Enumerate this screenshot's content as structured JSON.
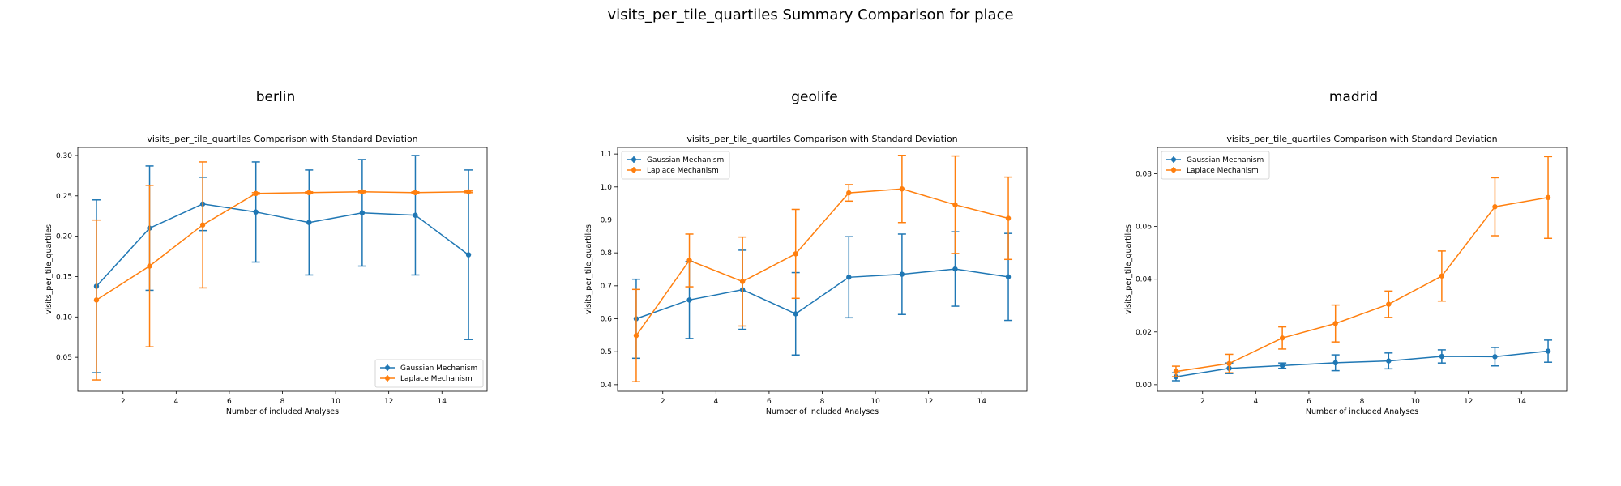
{
  "figure": {
    "suptitle": "visits_per_tile_quartiles Summary Comparison for place"
  },
  "chart_data": [
    {
      "type": "line",
      "panel_title": "berlin",
      "title": "visits_per_tile_quartiles Comparison with Standard Deviation",
      "xlabel": "Number of included Analyses",
      "ylabel": "visits_per_tile_quartiles",
      "xlim": [
        0.3,
        15.7
      ],
      "ylim": [
        0.008,
        0.31
      ],
      "xticks": [
        2,
        4,
        6,
        8,
        10,
        12,
        14
      ],
      "yticks": [
        0.05,
        0.1,
        0.15,
        0.2,
        0.25,
        0.3
      ],
      "yticklabels": [
        "0.05",
        "0.10",
        "0.15",
        "0.20",
        "0.25",
        "0.30"
      ],
      "legend": "lower-right",
      "x": [
        1,
        3,
        5,
        7,
        9,
        11,
        13,
        15
      ],
      "series": [
        {
          "name": "Gaussian Mechanism",
          "color": "#1f77b4",
          "values": [
            0.138,
            0.21,
            0.24,
            0.23,
            0.217,
            0.229,
            0.226,
            0.177
          ],
          "std": [
            0.107,
            0.077,
            0.033,
            0.062,
            0.065,
            0.066,
            0.074,
            0.105
          ]
        },
        {
          "name": "Laplace Mechanism",
          "color": "#ff7f0e",
          "values": [
            0.121,
            0.163,
            0.214,
            0.253,
            0.254,
            0.255,
            0.254,
            0.255
          ],
          "std": [
            0.099,
            0.1,
            0.078,
            0.001,
            0.001,
            0.001,
            0.001,
            0.001
          ]
        }
      ]
    },
    {
      "type": "line",
      "panel_title": "geolife",
      "title": "visits_per_tile_quartiles Comparison with Standard Deviation",
      "xlabel": "Number of included Analyses",
      "ylabel": "visits_per_tile_quartiles",
      "xlim": [
        0.3,
        15.7
      ],
      "ylim": [
        0.38,
        1.12
      ],
      "xticks": [
        2,
        4,
        6,
        8,
        10,
        12,
        14
      ],
      "yticks": [
        0.4,
        0.5,
        0.6,
        0.7,
        0.8,
        0.9,
        1.0,
        1.1
      ],
      "yticklabels": [
        "0.4",
        "0.5",
        "0.6",
        "0.7",
        "0.8",
        "0.9",
        "1.0",
        "1.1"
      ],
      "legend": "top-left",
      "x": [
        1,
        3,
        5,
        7,
        9,
        11,
        13,
        15
      ],
      "series": [
        {
          "name": "Gaussian Mechanism",
          "color": "#1f77b4",
          "values": [
            0.6,
            0.657,
            0.688,
            0.615,
            0.726,
            0.735,
            0.751,
            0.727
          ],
          "std": [
            0.12,
            0.117,
            0.12,
            0.125,
            0.123,
            0.122,
            0.113,
            0.132
          ]
        },
        {
          "name": "Laplace Mechanism",
          "color": "#ff7f0e",
          "values": [
            0.549,
            0.777,
            0.713,
            0.797,
            0.982,
            0.994,
            0.946,
            0.905
          ],
          "std": [
            0.14,
            0.08,
            0.135,
            0.135,
            0.025,
            0.102,
            0.148,
            0.125
          ]
        }
      ]
    },
    {
      "type": "line",
      "panel_title": "madrid",
      "title": "visits_per_tile_quartiles Comparison with Standard Deviation",
      "xlabel": "Number of included Analyses",
      "ylabel": "visits_per_tile_quartiles",
      "xlim": [
        0.3,
        15.7
      ],
      "ylim": [
        -0.0025,
        0.09
      ],
      "xticks": [
        2,
        4,
        6,
        8,
        10,
        12,
        14
      ],
      "yticks": [
        0.0,
        0.02,
        0.04,
        0.06,
        0.08
      ],
      "yticklabels": [
        "0.00",
        "0.02",
        "0.04",
        "0.06",
        "0.08"
      ],
      "legend": "top-left",
      "x": [
        1,
        3,
        5,
        7,
        9,
        11,
        13,
        15
      ],
      "series": [
        {
          "name": "Gaussian Mechanism",
          "color": "#1f77b4",
          "values": [
            0.003,
            0.0062,
            0.0072,
            0.0083,
            0.009,
            0.0107,
            0.0106,
            0.0127
          ],
          "std": [
            0.0015,
            0.002,
            0.001,
            0.003,
            0.003,
            0.0025,
            0.0035,
            0.0042
          ]
        },
        {
          "name": "Laplace Mechanism",
          "color": "#ff7f0e",
          "values": [
            0.005,
            0.008,
            0.0177,
            0.0232,
            0.0305,
            0.0412,
            0.0675,
            0.071
          ],
          "std": [
            0.002,
            0.0035,
            0.0042,
            0.007,
            0.005,
            0.0095,
            0.011,
            0.0155
          ]
        }
      ]
    }
  ]
}
